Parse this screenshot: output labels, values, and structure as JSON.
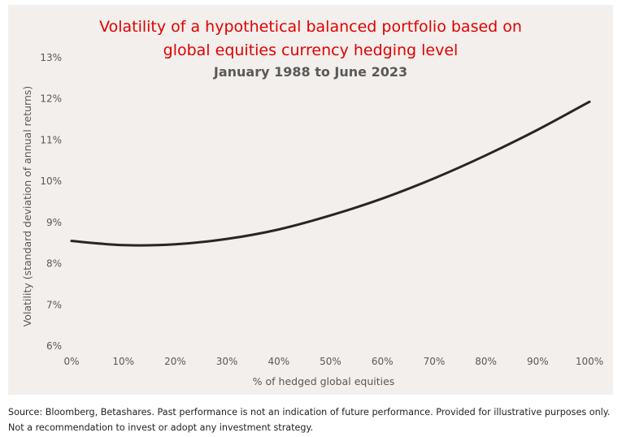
{
  "chart_data": {
    "type": "line",
    "title_lines": [
      "Volatility of a hypothetical balanced portfolio based on",
      "global equities currency hedging level"
    ],
    "subtitle": "January 1988 to June 2023",
    "xlabel": "% of hedged global equities",
    "ylabel": "Volatility (standard deviation of annual returns)",
    "x_tick_labels": [
      "0%",
      "10%",
      "20%",
      "30%",
      "40%",
      "50%",
      "60%",
      "70%",
      "80%",
      "90%",
      "100%"
    ],
    "y_tick_labels": [
      "6%",
      "7%",
      "8%",
      "9%",
      "10%",
      "11%",
      "12%",
      "13%"
    ],
    "xlim": [
      0,
      100
    ],
    "ylim": [
      6,
      13
    ],
    "grid": false,
    "series": [
      {
        "x": [
          0,
          10,
          20,
          30,
          40,
          50,
          60,
          70,
          80,
          90,
          100
        ],
        "values": [
          8.55,
          8.45,
          8.47,
          8.6,
          8.83,
          9.17,
          9.58,
          10.07,
          10.63,
          11.25,
          11.93
        ]
      }
    ],
    "colors": {
      "line": "#262626",
      "title": "#e00000",
      "background": "#f2efec"
    }
  },
  "footer": {
    "line1": "Source: Bloomberg, Betashares. Past performance is not an indication of future performance. Provided for illustrative purposes only.",
    "line2": "Not a recommendation to invest or adopt any investment strategy."
  }
}
